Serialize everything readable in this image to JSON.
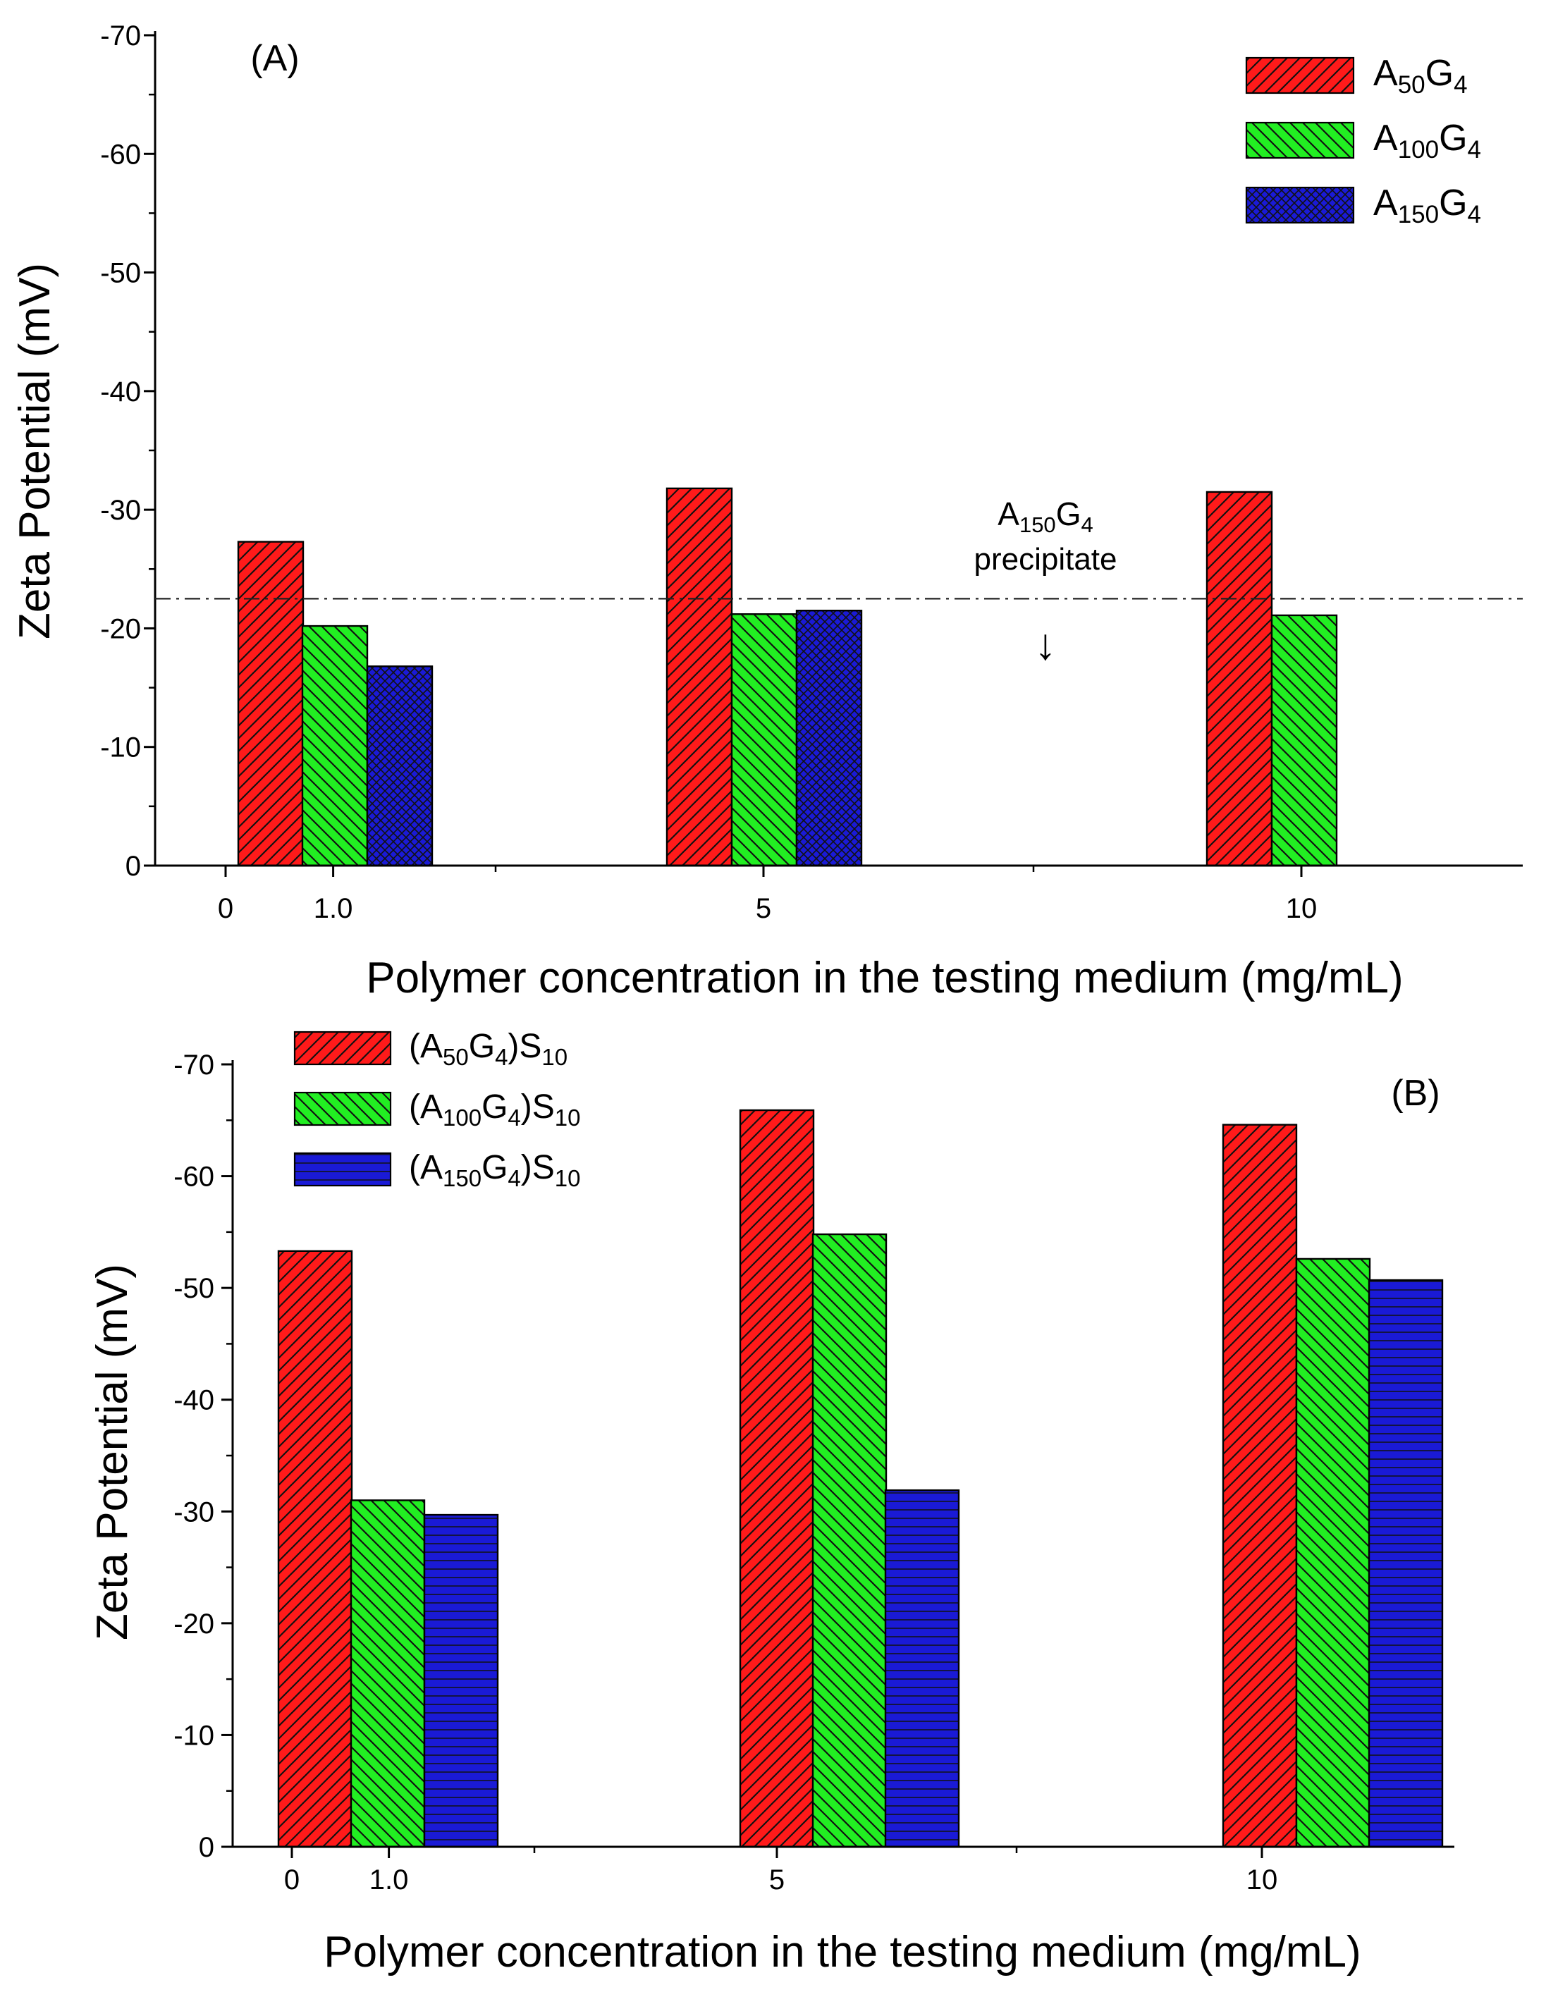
{
  "chart_data": [
    {
      "type": "bar",
      "panel_label": "(A)",
      "x_tick_labels": [
        "0",
        "1.0",
        "5",
        "10"
      ],
      "categories": [
        "1.0",
        "5",
        "10"
      ],
      "ylabel": "Zeta Potential (mV)",
      "xlabel": "Polymer concentration in the testing medium (mg/mL)",
      "ylim": [
        0,
        -70
      ],
      "y_ticks": [
        "-70",
        "-60",
        "-50",
        "-40",
        "-30",
        "-20",
        "-10",
        "0"
      ],
      "legend_position": "top-right",
      "series": [
        {
          "name": "A50G4",
          "label_parts": [
            [
              "A",
              "n"
            ],
            [
              "50",
              "sub"
            ],
            [
              "G",
              "n"
            ],
            [
              "4",
              "sub"
            ]
          ],
          "color": "#ff1a1a",
          "pattern": "hatch-fwd",
          "values": [
            -27.3,
            -31.8,
            -31.5
          ]
        },
        {
          "name": "A100G4",
          "label_parts": [
            [
              "A",
              "n"
            ],
            [
              "100",
              "sub"
            ],
            [
              "G",
              "n"
            ],
            [
              "4",
              "sub"
            ]
          ],
          "color": "#22ee22",
          "pattern": "hatch-back",
          "values": [
            -20.2,
            -21.2,
            -21.1
          ]
        },
        {
          "name": "A150G4",
          "label_parts": [
            [
              "A",
              "n"
            ],
            [
              "150",
              "sub"
            ],
            [
              "G",
              "n"
            ],
            [
              "4",
              "sub"
            ]
          ],
          "color": "#1a1ad6",
          "pattern": "crosshatch",
          "values": [
            -16.8,
            -21.5,
            null
          ]
        }
      ],
      "reference_line": -22.5,
      "annotation": {
        "line1_parts": [
          [
            "A",
            "n"
          ],
          [
            "150",
            "sub"
          ],
          [
            "G",
            "n"
          ],
          [
            "4",
            "sub"
          ]
        ],
        "line2": "precipitate",
        "arrow": "↓"
      }
    },
    {
      "type": "bar",
      "panel_label": "(B)",
      "x_tick_labels": [
        "0",
        "1.0",
        "5",
        "10"
      ],
      "categories": [
        "1.0",
        "5",
        "10"
      ],
      "ylabel": "Zeta Potential (mV)",
      "xlabel": "Polymer concentration in the testing medium (mg/mL)",
      "ylim": [
        0,
        -70
      ],
      "y_ticks": [
        "-70",
        "-60",
        "-50",
        "-40",
        "-30",
        "-20",
        "-10",
        "0"
      ],
      "legend_position": "top-left",
      "series": [
        {
          "name": "(A50G4)S10",
          "label_parts": [
            [
              "(A",
              "n"
            ],
            [
              "50",
              "sub"
            ],
            [
              "G",
              "n"
            ],
            [
              "4",
              "sub"
            ],
            [
              ")S",
              "n"
            ],
            [
              "10",
              "sub"
            ]
          ],
          "color": "#ff1a1a",
          "pattern": "hatch-fwd",
          "values": [
            -53.3,
            -65.9,
            -64.6
          ]
        },
        {
          "name": "(A100G4)S10",
          "label_parts": [
            [
              "(A",
              "n"
            ],
            [
              "100",
              "sub"
            ],
            [
              "G",
              "n"
            ],
            [
              "4",
              "sub"
            ],
            [
              ")S",
              "n"
            ],
            [
              "10",
              "sub"
            ]
          ],
          "color": "#22ee22",
          "pattern": "hatch-back",
          "values": [
            -31.0,
            -54.8,
            -52.6
          ]
        },
        {
          "name": "(A150G4)S10",
          "label_parts": [
            [
              "(A",
              "n"
            ],
            [
              "150",
              "sub"
            ],
            [
              "G",
              "n"
            ],
            [
              "4",
              "sub"
            ],
            [
              ")S",
              "n"
            ],
            [
              "10",
              "sub"
            ]
          ],
          "color": "#1a1ad6",
          "pattern": "horizontal",
          "values": [
            -29.7,
            -31.9,
            -50.7
          ]
        }
      ]
    }
  ]
}
